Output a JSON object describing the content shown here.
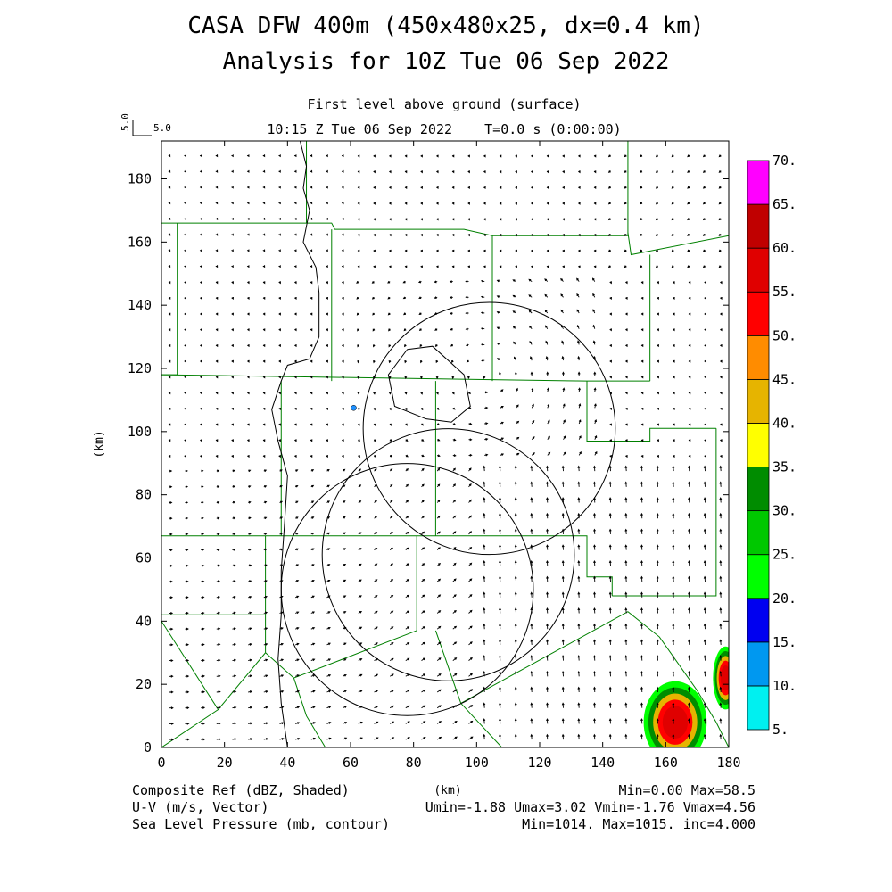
{
  "header": {
    "title_line1": "CASA DFW 400m (450x480x25, dx=0.4 km)",
    "title_line2": "Analysis for 10Z Tue 06 Sep 2022",
    "subtitle_level": "First level above ground (surface)",
    "subtitle_time": "10:15 Z Tue 06 Sep 2022    T=0.0 s (0:00:00)"
  },
  "vector_scale": {
    "vertical_label": "5.0",
    "horizontal_label": "5.0"
  },
  "chart_data": {
    "type": "heatmap",
    "xlabel": "(km)",
    "ylabel": "(km)",
    "xlim": [
      0,
      180
    ],
    "ylim": [
      0,
      192
    ],
    "x_ticks": [
      0,
      20,
      40,
      60,
      80,
      100,
      120,
      140,
      160,
      180
    ],
    "y_ticks": [
      0,
      20,
      40,
      60,
      80,
      100,
      120,
      140,
      160,
      180
    ],
    "x_tick_labels": [
      "0",
      "20",
      "40",
      "60",
      "80",
      "100",
      "120",
      "140",
      "160",
      "180"
    ],
    "y_tick_labels": [
      "0",
      "20",
      "40",
      "60",
      "80",
      "100",
      "120",
      "140",
      "160",
      "180"
    ],
    "colorbar": {
      "labels": [
        "5.",
        "10.",
        "15.",
        "20.",
        "25.",
        "30.",
        "35.",
        "40.",
        "45.",
        "50.",
        "55.",
        "60.",
        "65.",
        "70."
      ],
      "colors": [
        "#00f0f0",
        "#0098f0",
        "#0000f0",
        "#00ff00",
        "#00c800",
        "#008c00",
        "#ffff00",
        "#e6b400",
        "#ff8c00",
        "#ff0000",
        "#e00000",
        "#c00000",
        "#ff00ff"
      ]
    },
    "radar_circles_km": [
      {
        "cx": 78,
        "cy": 50,
        "r": 40
      },
      {
        "cx": 91,
        "cy": 61,
        "r": 40
      },
      {
        "cx": 104,
        "cy": 101,
        "r": 40
      },
      {
        "cx": 61,
        "cy": 107.5,
        "r": 0.8
      }
    ],
    "reflectivity_cells": [
      {
        "x": 163,
        "y": 8,
        "rx": 10,
        "ry": 13,
        "dbz": 58
      },
      {
        "x": 179,
        "y": 22,
        "rx": 4,
        "ry": 10,
        "dbz": 55
      }
    ],
    "pressure_contour_km": [
      [
        44,
        192
      ],
      [
        46,
        184
      ],
      [
        45,
        177
      ],
      [
        47,
        170
      ],
      [
        45,
        160
      ],
      [
        49,
        152
      ],
      [
        50,
        144
      ],
      [
        50,
        130
      ],
      [
        47,
        123
      ],
      [
        40,
        121
      ],
      [
        38,
        116
      ],
      [
        35,
        107
      ],
      [
        37,
        97
      ],
      [
        40,
        86
      ],
      [
        39,
        70
      ],
      [
        38,
        56
      ],
      [
        38,
        42
      ],
      [
        37,
        28
      ],
      [
        38,
        14
      ],
      [
        40,
        0
      ]
    ],
    "pressure_contour2_km": [
      [
        78,
        126
      ],
      [
        86,
        127
      ],
      [
        96,
        118
      ],
      [
        98,
        108
      ],
      [
        92,
        103
      ],
      [
        84,
        104
      ],
      [
        74,
        108
      ],
      [
        72,
        118
      ],
      [
        78,
        126
      ]
    ]
  },
  "footer": {
    "line1_left": "Composite Ref (dBZ, Shaded)",
    "line2_left": "U-V (m/s, Vector)",
    "line3_left": "Sea Level Pressure (mb, contour)",
    "center_unit": "(km)",
    "line1_right": "Min=0.00 Max=58.5",
    "line2_right": "Umin=-1.88 Umax=3.02 Vmin=-1.76 Vmax=4.56",
    "line3_right": "Min=1014. Max=1015. inc=4.000"
  },
  "colors": {
    "county_lines": "#008000",
    "contours": "#000000",
    "vectors": "#000000"
  }
}
